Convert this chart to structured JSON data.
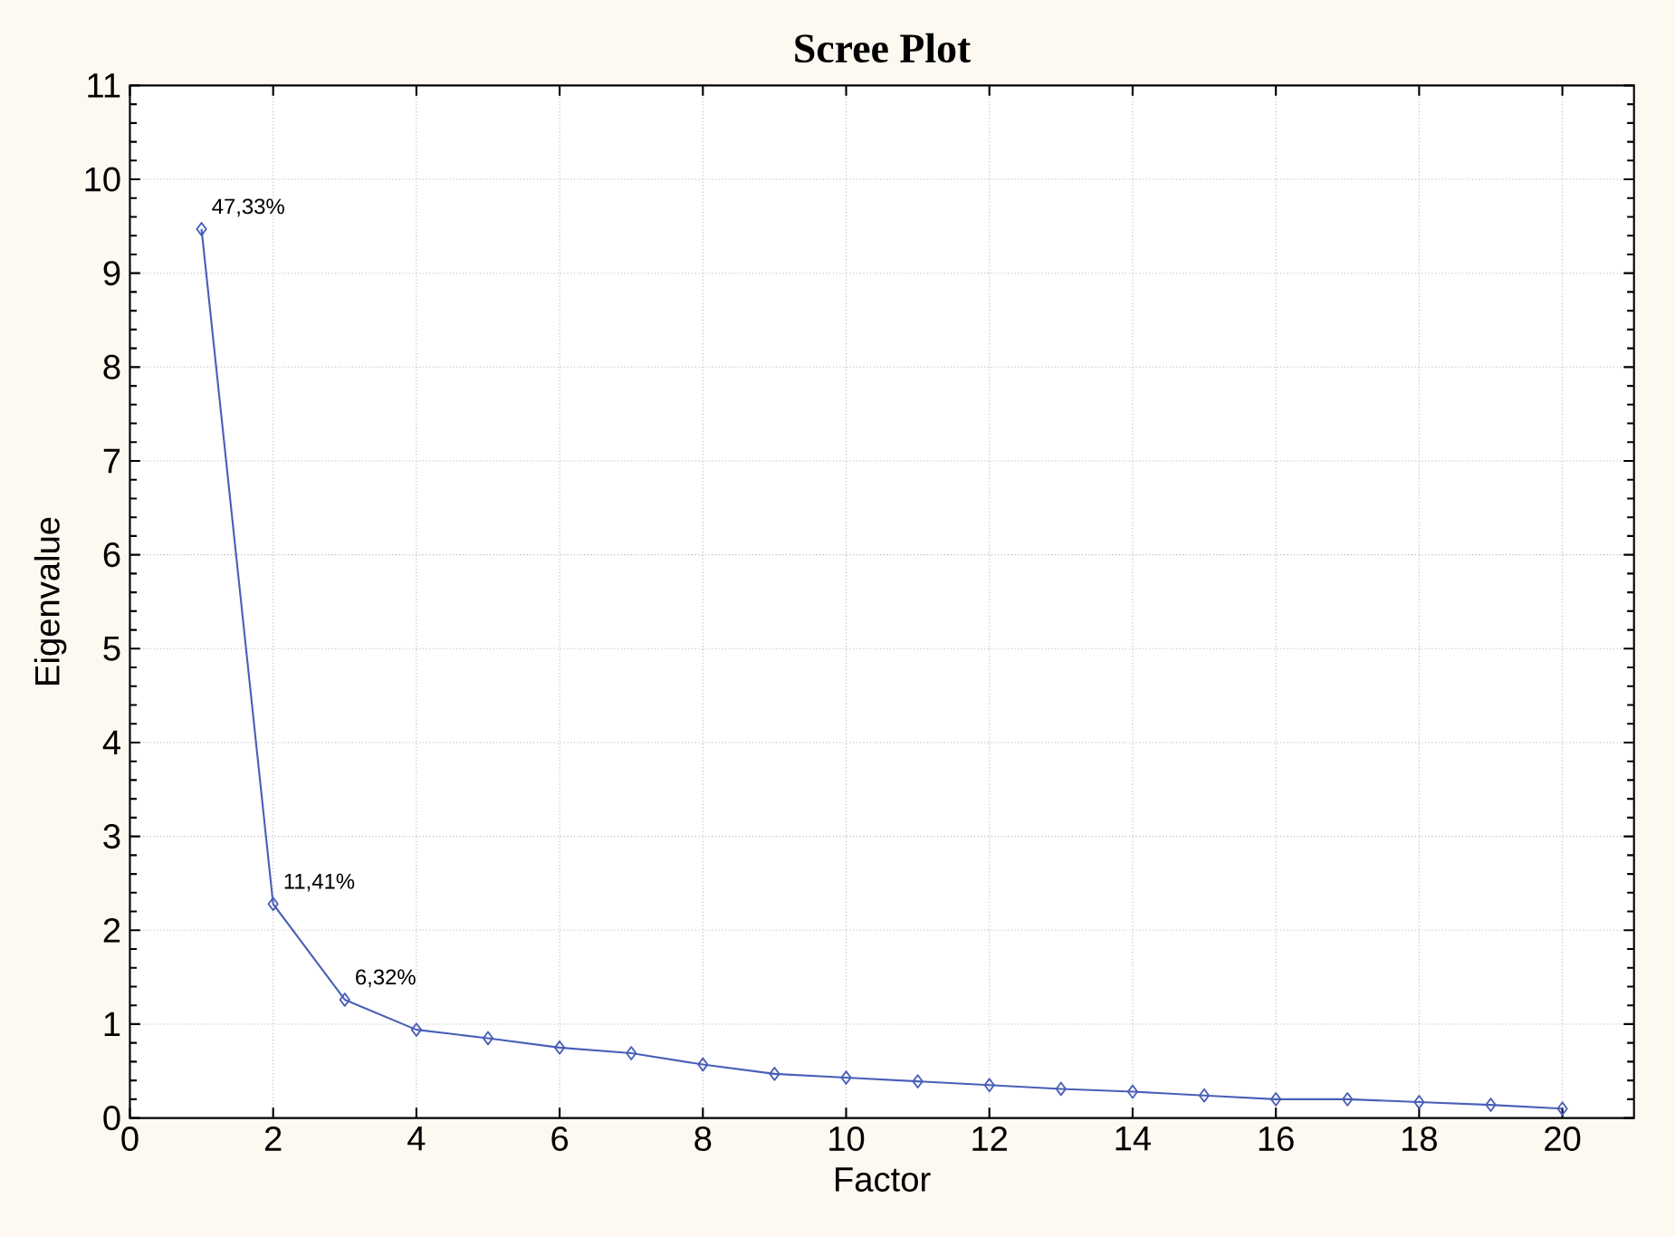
{
  "chart_data": {
    "type": "line",
    "title": "Scree Plot",
    "xlabel": "Factor",
    "ylabel": "Eigenvalue",
    "x": [
      1,
      2,
      3,
      4,
      5,
      6,
      7,
      8,
      9,
      10,
      11,
      12,
      13,
      14,
      15,
      16,
      17,
      18,
      19,
      20
    ],
    "series": [
      {
        "color": "#4a5fb8",
        "values": [
          9.47,
          2.28,
          1.26,
          0.94,
          0.85,
          0.75,
          0.69,
          0.57,
          0.47,
          0.43,
          0.39,
          0.35,
          0.31,
          0.28,
          0.24,
          0.2,
          0.2,
          0.17,
          0.14,
          0.1
        ]
      }
    ],
    "xlim": [
      0,
      21
    ],
    "ylim": [
      0,
      11
    ],
    "xticks": [
      0,
      2,
      4,
      6,
      8,
      10,
      12,
      14,
      16,
      18,
      20
    ],
    "yticks": [
      0,
      1,
      2,
      3,
      4,
      5,
      6,
      7,
      8,
      9,
      10,
      11
    ],
    "grid": true,
    "marker": "diamond",
    "line_style": "solid",
    "annotations": [
      {
        "text": "47,33%",
        "x": 1,
        "y": 9.47
      },
      {
        "text": "11,41%",
        "x": 2,
        "y": 2.28
      },
      {
        "text": "6,32%",
        "x": 3,
        "y": 1.26
      }
    ]
  }
}
